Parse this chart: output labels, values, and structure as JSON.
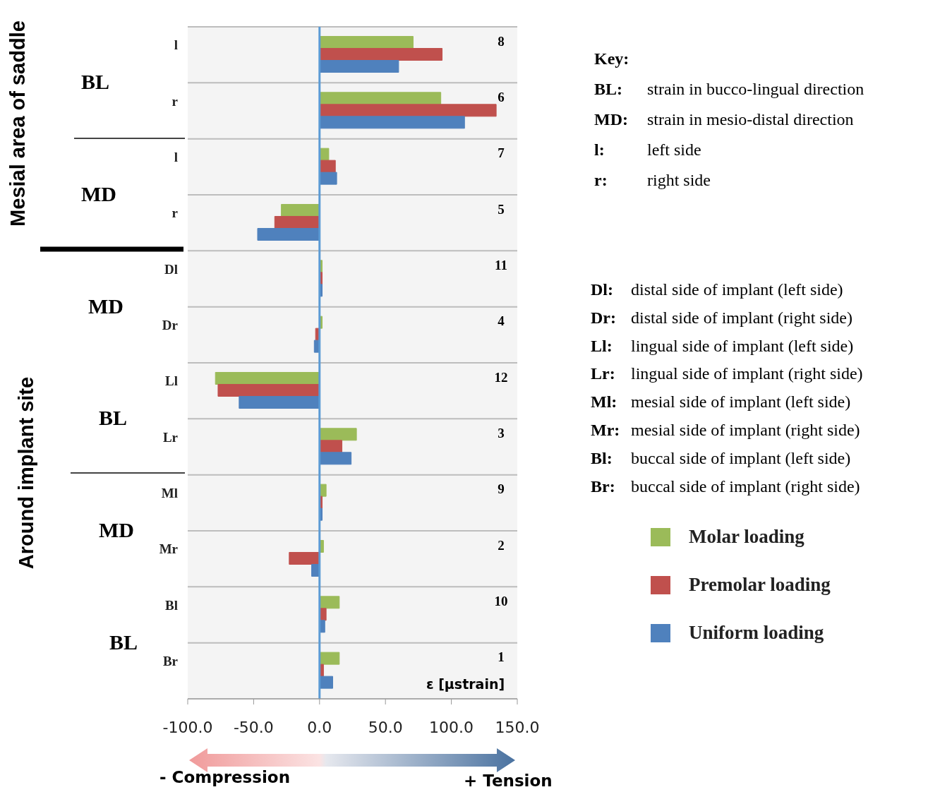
{
  "chart_data": {
    "type": "bar",
    "orientation": "horizontal",
    "xlabel": "ε [µstrain]",
    "categories": [
      "l",
      "r",
      "l",
      "r",
      "Dl",
      "Dr",
      "Ll",
      "Lr",
      "Ml",
      "Mr",
      "Bl",
      "Br"
    ],
    "series": [
      {
        "name": "Molar loading",
        "color": "#9bbb59",
        "values": [
          71,
          92,
          7,
          -29,
          2,
          2,
          -79,
          28,
          5,
          3,
          15,
          15
        ]
      },
      {
        "name": "Premolar loading",
        "color": "#c0504d",
        "values": [
          93,
          134,
          12,
          -34,
          2,
          -3,
          -77,
          17,
          2,
          -23,
          5,
          3
        ]
      },
      {
        "name": "Uniform loading",
        "color": "#4f81bd",
        "values": [
          60,
          110,
          13,
          -47,
          2,
          -4,
          -61,
          24,
          2,
          -6,
          4,
          10
        ]
      }
    ],
    "xlim": [
      -100,
      150
    ],
    "xticks": [
      {
        "value": -100,
        "label": "-100.0"
      },
      {
        "value": -50,
        "label": "-50.0"
      },
      {
        "value": 0,
        "label": "0.0"
      },
      {
        "value": 50,
        "label": "50.0"
      },
      {
        "value": 100,
        "label": "100.0"
      },
      {
        "value": 150,
        "label": "150.0"
      }
    ],
    "ref_lines": [
      {
        "axis": "x",
        "value": 0,
        "color": "#5b9bd5"
      }
    ],
    "grid": "y",
    "legend": "right",
    "annotations": [
      "8",
      "6",
      "7",
      "5",
      "11",
      "4",
      "12",
      "3",
      "9",
      "2",
      "10",
      "1",
      "BL",
      "MD",
      "MD",
      "BL",
      "MD",
      "BL",
      "Mesial area of saddle",
      "Around implant site",
      "- Compression",
      "+ Tension",
      "Key:",
      "BL:",
      "strain in bucco-lingual direction",
      "MD:",
      "strain in mesio-distal direction",
      "l:",
      "left side",
      "r:",
      "right side",
      "Dl:",
      "distal side of implant (left side)",
      "Dr:",
      "distal side of implant (right side)",
      "Ll:",
      "lingual side of implant (left side)",
      "Lr:",
      "lingual side of implant (right side)",
      "Ml:",
      "mesial side of implant (left side)",
      "Mr:",
      "mesial side of implant (right side)",
      "Bl:",
      "buccal side of implant (left side)",
      "Br:",
      "buccal side of implant (right side)"
    ]
  }
}
